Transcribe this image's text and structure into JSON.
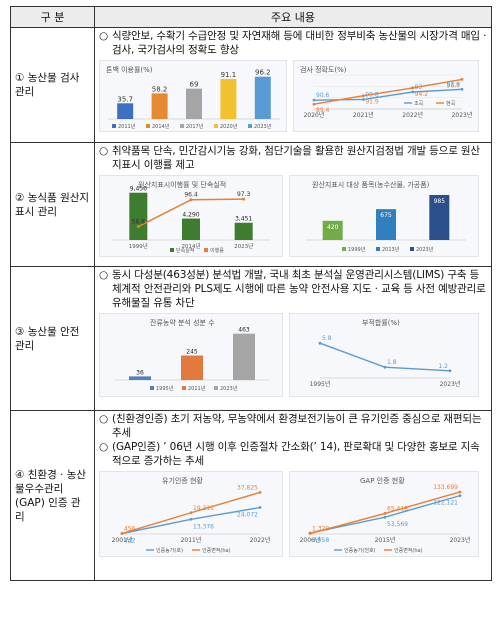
{
  "header": {
    "col1": "구 분",
    "col2": "주요 내용"
  },
  "rows": [
    {
      "category": "① 농산물 검사\n관리",
      "bullets": [
        {
          "mark": "○",
          "text": "식량안보, 수확기 수급안정 및 자연재해 등에 대비한 정부비축 농산물의 시장가격 매입 · 검사, 국가검사의 정확도 향상"
        }
      ],
      "charts": [
        {
          "title": "톤백 이용률(%)",
          "type": "bar",
          "categories": [
            "2011년",
            "2014년",
            "2017년",
            "2020년",
            "2023년"
          ],
          "values": [
            35.7,
            58.2,
            69,
            91.1,
            96.2
          ],
          "value_labels": [
            "35.7",
            "58.2",
            "69",
            "91.1",
            "96.2"
          ],
          "colors": [
            "#3f6fc2",
            "#e58a32",
            "#a5a5a5",
            "#f2c12e",
            "#5b9bd5"
          ]
        },
        {
          "title": "검사 정확도(%)",
          "type": "line",
          "categories": [
            "2020년",
            "2021년",
            "2022년",
            "2023년"
          ],
          "series": [
            {
              "name": "조곡",
              "values": [
                90.6,
                90.8,
                93,
                93.8
              ],
              "labels": [
                "90.6",
                "90.8",
                "93",
                "93.8"
              ],
              "color": "#5b9bd5"
            },
            {
              "name": "현곡",
              "values": [
                89.4,
                91.9,
                94.2,
                96.7
              ],
              "labels": [
                "89.4",
                "91.9",
                "94.2",
                "96.7"
              ],
              "color": "#ed7d31"
            }
          ]
        }
      ]
    },
    {
      "category": "② 농식품 원산지\n표시 관리",
      "bullets": [
        {
          "mark": "○",
          "text": "취약품목 단속, 민간감시기능 강화, 첨단기술을 활용한 원산지검정법 개발 등으로 원산지표시 이행률 제고"
        }
      ],
      "charts": [
        {
          "title": "원산지표시이행률 및 단속실적",
          "type": "bar-line",
          "categories": [
            "1999년",
            "2014년",
            "2023년"
          ],
          "bars": [
            9456,
            4290,
            3451
          ],
          "bar_labels": [
            "9,456",
            "4,290",
            "3,451"
          ],
          "line": [
            58.8,
            96.4,
            97.3
          ],
          "line_labels": [
            "58.8",
            "96.4",
            "97.3"
          ],
          "legend": [
            "단속실적",
            "이행률"
          ]
        },
        {
          "title": "원산지표시 대상 품목(농수산물, 가공품)",
          "type": "bar",
          "categories": [
            "1999년",
            "2013년",
            "2023년"
          ],
          "values": [
            420,
            675,
            985
          ],
          "value_labels": [
            "420",
            "675",
            "985"
          ],
          "colors": [
            "#70ad47",
            "#2f7fc1",
            "#2b4f8a"
          ]
        }
      ]
    },
    {
      "category": "③ 농산물 안전\n관리",
      "bullets": [
        {
          "mark": "○",
          "text": "동시 다성분(463성분) 분석법 개발, 국내 최초 분석실 운영관리시스템(LIMS) 구축 등 체계적 안전관리와 PLS제도 시행에 따른 농약 안전사용 지도 · 교육 등 사전 예방관리로 유해물질 유통 차단"
        }
      ],
      "charts": [
        {
          "title": "잔류농약 분석 성분 수",
          "type": "bar",
          "categories": [
            "1995년",
            "2011년",
            "2023년"
          ],
          "values": [
            36,
            245,
            463
          ],
          "value_labels": [
            "36",
            "245",
            "463"
          ],
          "colors": [
            "#4f81bd",
            "#e07a3f",
            "#a5a5a5"
          ]
        },
        {
          "title": "부적합률(%)",
          "type": "line",
          "categories": [
            "1995년",
            "",
            "2023년"
          ],
          "values": [
            5.8,
            1.8,
            1.2
          ],
          "value_labels": [
            "5.8",
            "1.8",
            "1.2"
          ],
          "color": "#5b9bd5"
        }
      ]
    },
    {
      "category": "④ 친환경 · 농산물우수관리(GAP) 인증 관리",
      "bullets": [
        {
          "mark": "○",
          "text": "(친환경인증) 초기 저농약, 무농약에서 환경보전기능이 큰 유기인증 중심으로 재편되는 추세"
        },
        {
          "mark": "○",
          "text": "(GAP인증) ’ 06년 시행 이후 인증절차 간소화(’ 14), 판로확대 및 다양한 홍보로 지속적으로 증가하는 추세"
        }
      ],
      "charts": [
        {
          "title": "유기인증 현황",
          "type": "line",
          "categories": [
            "2001년",
            "2011년",
            "2022년"
          ],
          "series": [
            {
              "name": "인증농가(호)",
              "values": [
                442,
                13376,
                24072
              ],
              "labels": [
                "442",
                "13,376",
                "24,072"
              ],
              "color": "#5b9bd5"
            },
            {
              "name": "인증면적(ha)",
              "values": [
                456,
                19311,
                37825
              ],
              "labels": [
                "456",
                "19,311",
                "37,825"
              ],
              "color": "#ed7d31"
            }
          ]
        },
        {
          "title": "GAP 인증 현황",
          "type": "line",
          "categories": [
            "2006년",
            "2015년",
            "2023년"
          ],
          "series": [
            {
              "name": "인증농가(천호)",
              "values": [
                3058,
                53569,
                122121
              ],
              "labels": [
                "3,058",
                "53,569",
                "122,121"
              ],
              "color": "#5b9bd5"
            },
            {
              "name": "인증면적(ha)",
              "values": [
                1329,
                65418,
                133699
              ],
              "labels": [
                "1,329",
                "65,418",
                "133,699"
              ],
              "color": "#ed7d31"
            }
          ]
        }
      ]
    }
  ],
  "chart_data": [
    {
      "type": "bar",
      "title": "톤백 이용률(%)",
      "categories": [
        "2011년",
        "2014년",
        "2017년",
        "2020년",
        "2023년"
      ],
      "values": [
        35.7,
        58.2,
        69,
        91.1,
        96.2
      ]
    },
    {
      "type": "line",
      "title": "검사 정확도(%)",
      "x": [
        "2020년",
        "2021년",
        "2022년",
        "2023년"
      ],
      "series": [
        {
          "name": "조곡",
          "values": [
            90.6,
            90.8,
            93,
            93.8
          ]
        },
        {
          "name": "현곡",
          "values": [
            89.4,
            91.9,
            94.2,
            96.7
          ]
        }
      ]
    },
    {
      "type": "bar",
      "title": "원산지표시이행률 및 단속실적",
      "categories": [
        "1999년",
        "2014년",
        "2023년"
      ],
      "series": [
        {
          "name": "단속실적",
          "values": [
            9456,
            4290,
            3451
          ]
        },
        {
          "name": "이행률",
          "values": [
            58.8,
            96.4,
            97.3
          ]
        }
      ]
    },
    {
      "type": "bar",
      "title": "원산지표시 대상 품목(농수산물, 가공품)",
      "categories": [
        "1999년",
        "2013년",
        "2023년"
      ],
      "values": [
        420,
        675,
        985
      ]
    },
    {
      "type": "bar",
      "title": "잔류농약 분석 성분 수",
      "categories": [
        "1995년",
        "2011년",
        "2023년"
      ],
      "values": [
        36,
        245,
        463
      ]
    },
    {
      "type": "line",
      "title": "부적합률(%)",
      "x": [
        "1995년",
        "",
        "2023년"
      ],
      "values": [
        5.8,
        1.8,
        1.2
      ]
    },
    {
      "type": "line",
      "title": "유기인증 현황",
      "x": [
        "2001년",
        "2011년",
        "2022년"
      ],
      "series": [
        {
          "name": "인증농가(호)",
          "values": [
            442,
            13376,
            24072
          ]
        },
        {
          "name": "인증면적(ha)",
          "values": [
            456,
            19311,
            37825
          ]
        }
      ]
    },
    {
      "type": "line",
      "title": "GAP 인증 현황",
      "x": [
        "2006년",
        "2015년",
        "2023년"
      ],
      "series": [
        {
          "name": "인증농가(천호)",
          "values": [
            3058,
            53569,
            122121
          ]
        },
        {
          "name": "인증면적(ha)",
          "values": [
            1329,
            65418,
            133699
          ]
        }
      ]
    }
  ]
}
